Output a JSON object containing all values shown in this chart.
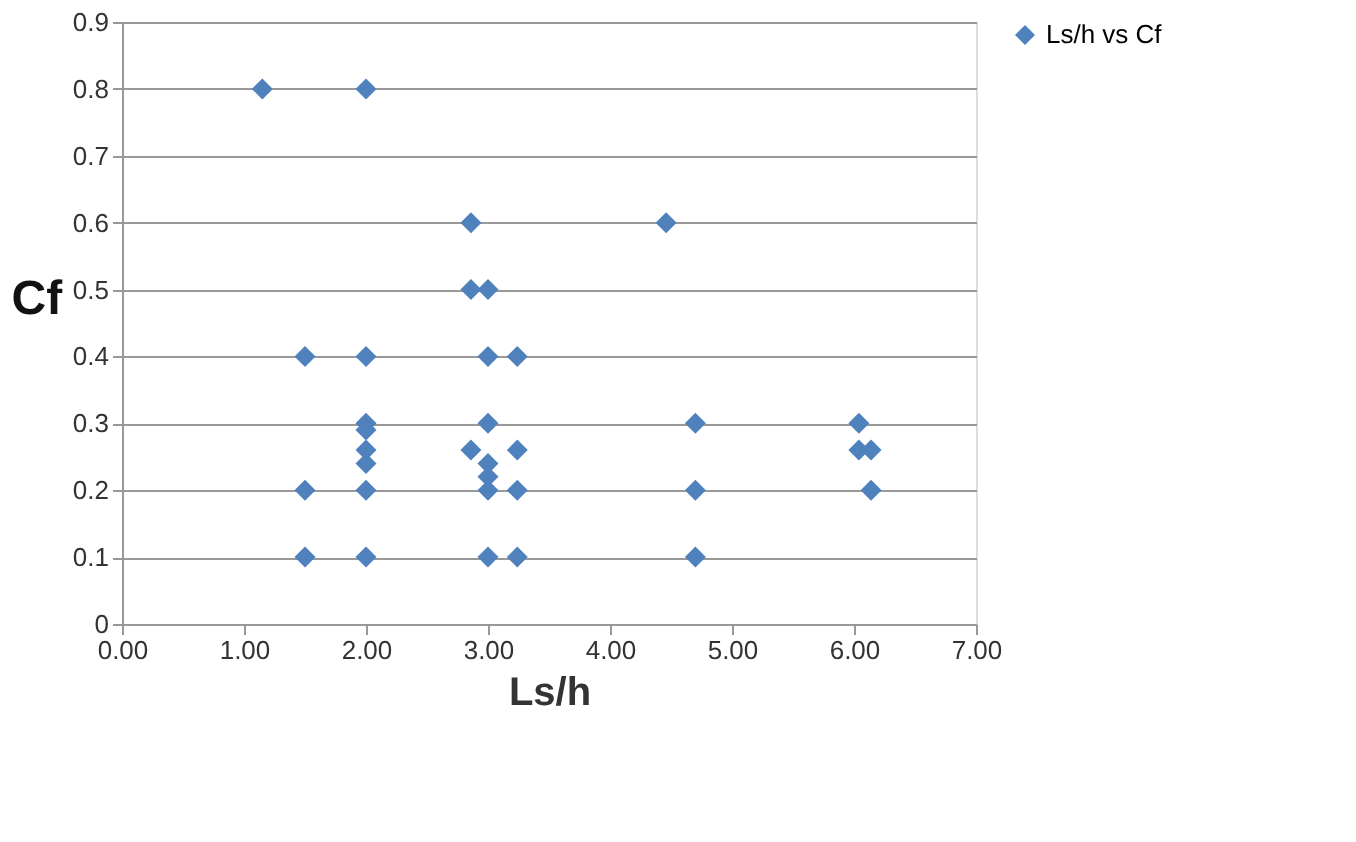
{
  "chart_data": {
    "type": "scatter",
    "xlabel": "Ls/h",
    "ylabel": "Cf",
    "marker": "diamond",
    "grid": "y",
    "legend": "right",
    "xlim": [
      0,
      7
    ],
    "ylim": [
      0,
      0.9
    ],
    "xticks": [
      {
        "value": 0,
        "label": "0.00"
      },
      {
        "value": 1,
        "label": "1.00"
      },
      {
        "value": 2,
        "label": "2.00"
      },
      {
        "value": 3,
        "label": "3.00"
      },
      {
        "value": 4,
        "label": "4.00"
      },
      {
        "value": 5,
        "label": "5.00"
      },
      {
        "value": 6,
        "label": "6.00"
      },
      {
        "value": 7,
        "label": "7.00"
      }
    ],
    "yticks": [
      0,
      0.1,
      0.2,
      0.3,
      0.4,
      0.5,
      0.6,
      0.7,
      0.8,
      0.9
    ],
    "series": [
      {
        "name": "Ls/h vs Cf",
        "color": "#4f81bd",
        "x": [
          1.15,
          2.0,
          2.86,
          4.46,
          2.86,
          3.0,
          1.5,
          2.0,
          3.0,
          3.24,
          2.0,
          2.0,
          2.0,
          2.0,
          3.0,
          4.7,
          6.04,
          2.86,
          3.0,
          3.24,
          3.0,
          6.04,
          6.14,
          1.5,
          2.0,
          3.0,
          3.24,
          4.7,
          6.14,
          1.5,
          2.0,
          3.0,
          3.24,
          4.7
        ],
        "values": [
          0.8,
          0.8,
          0.6,
          0.6,
          0.5,
          0.5,
          0.4,
          0.4,
          0.4,
          0.4,
          0.3,
          0.29,
          0.26,
          0.24,
          0.3,
          0.3,
          0.3,
          0.26,
          0.24,
          0.26,
          0.22,
          0.26,
          0.26,
          0.2,
          0.2,
          0.2,
          0.2,
          0.2,
          0.2,
          0.1,
          0.1,
          0.1,
          0.1,
          0.1
        ]
      }
    ]
  }
}
